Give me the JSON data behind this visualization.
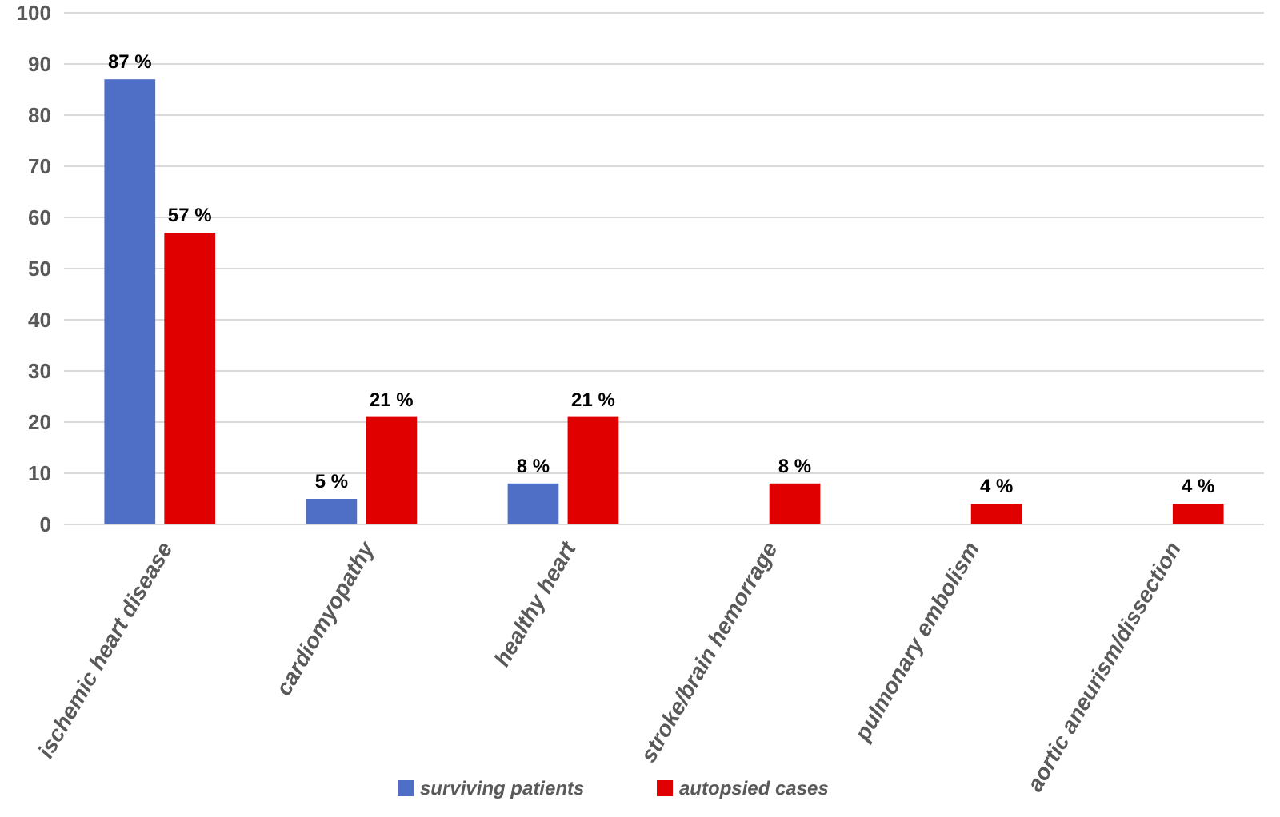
{
  "chart_data": {
    "type": "bar",
    "categories": [
      "ischemic heart disease",
      "cardiomyopathy",
      "healthy heart",
      "stroke/brain hemorrage",
      "pulmonary embolism",
      "aortic aneurism/dissection"
    ],
    "series": [
      {
        "name": "surviving patients",
        "color": "#4f6fc7",
        "values": [
          87,
          5,
          8,
          null,
          null,
          null
        ],
        "value_labels": [
          "87 %",
          "5 %",
          "8 %",
          null,
          null,
          null
        ]
      },
      {
        "name": "autopsied cases",
        "color": "#e00000",
        "values": [
          57,
          21,
          21,
          8,
          4,
          4
        ],
        "value_labels": [
          "57 %",
          "21 %",
          "21 %",
          "8 %",
          "4 %",
          "4 %"
        ]
      }
    ],
    "ylim": [
      0,
      100
    ],
    "yticks": [
      0,
      10,
      20,
      30,
      40,
      50,
      60,
      70,
      80,
      90,
      100
    ],
    "grid": "y",
    "legend": "bottom"
  }
}
